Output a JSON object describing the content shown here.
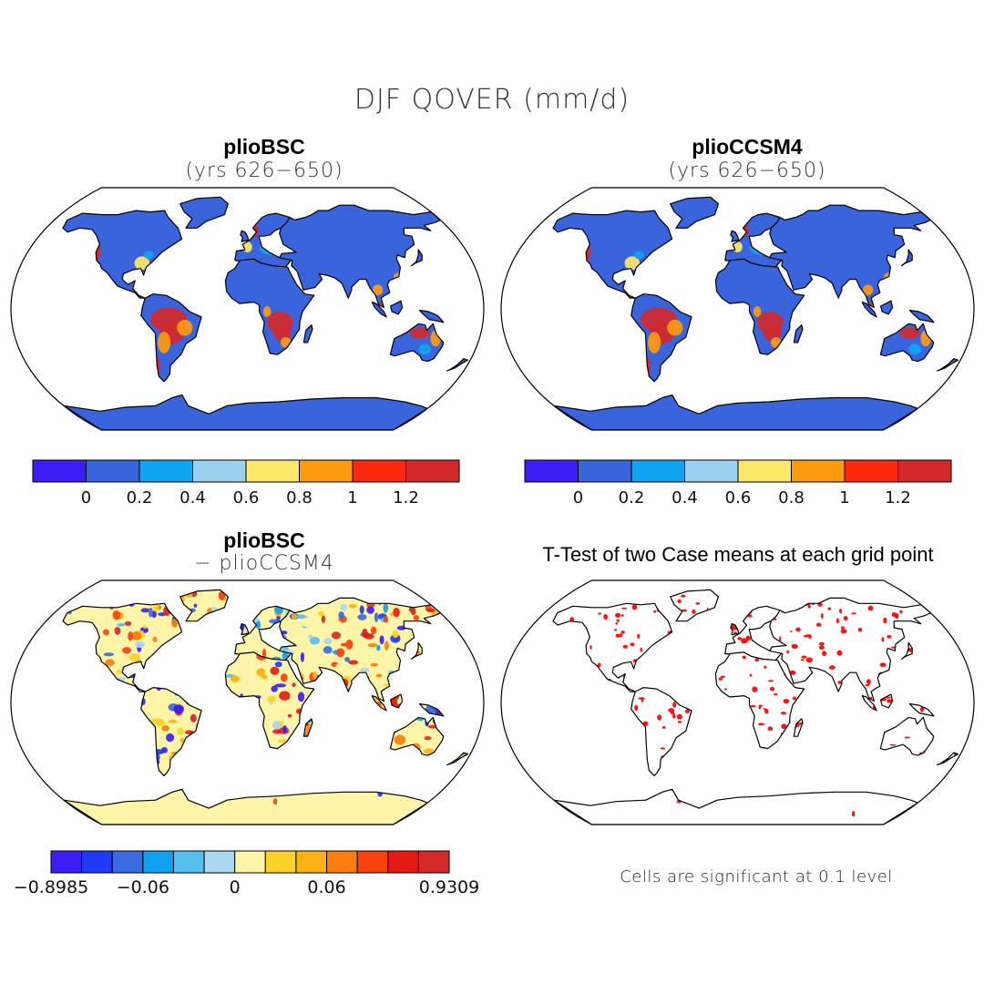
{
  "title": "DJF QOVER (mm/d)",
  "panels": [
    {
      "title": "plioBSC",
      "subtitle": "(yrs 626−650)"
    },
    {
      "title": "plioCCSM4",
      "subtitle": "(yrs 626−650)"
    },
    {
      "title": "plioBSC",
      "subtitle": "− plioCCSM4"
    },
    {
      "title": "T-Test of two Case means at each grid point",
      "subtitle": ""
    }
  ],
  "colorbars": {
    "absolute": {
      "colors": [
        "#3d1df5",
        "#3a64dc",
        "#10a3f2",
        "#9cd1ef",
        "#fde86a",
        "#fd9b0e",
        "#fb2a0e",
        "#d1292b"
      ],
      "labels": [
        "0",
        "0.2",
        "0.4",
        "0.6",
        "0.8",
        "1",
        "1.2"
      ]
    },
    "difference": {
      "colors": [
        "#3d1df5",
        "#1f3af5",
        "#3b6be0",
        "#10a0f0",
        "#55bff0",
        "#a9d8ef",
        "#fff5a8",
        "#fdd22a",
        "#fdb215",
        "#fb7d0c",
        "#f7420c",
        "#e61a14",
        "#d52a2c"
      ],
      "labels": [
        "−0.8985",
        "−0.06",
        "0",
        "0.06",
        "0.9309"
      ]
    }
  },
  "footnote": "Cells are significant at 0.1 level",
  "map_colors": {
    "ocean": "#ffffff",
    "land_low": "#3a64dc",
    "land_mid": "#10a3f2",
    "land_light": "#9cd1ef",
    "wet_yellow": "#fde86a",
    "wet_orange": "#fd9b0e",
    "wet_red": "#d1292b",
    "diff_base": "#fff5a8",
    "sig": "#ff0000"
  }
}
